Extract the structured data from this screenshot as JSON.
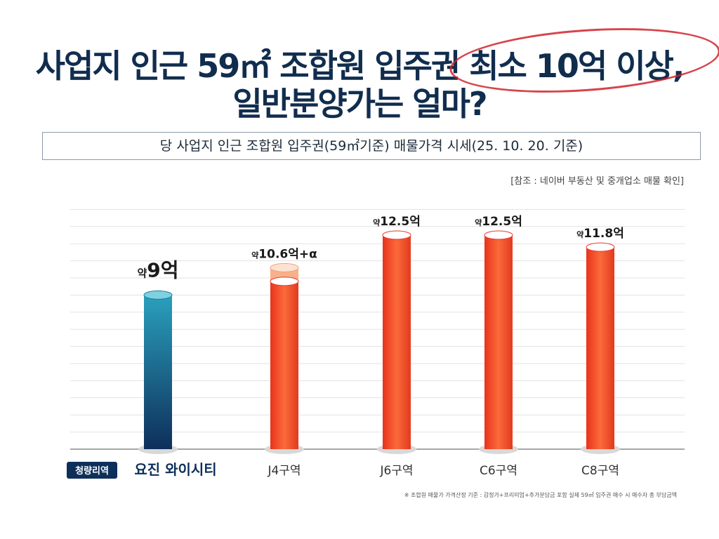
{
  "title": {
    "line1": "사업지 인근 59㎡ 조합원 입주권 최소 10억 이상,",
    "line2": "일반분양가는 얼마?"
  },
  "subtitle": "당 사업지 인근 조합원 입주권(59㎡기준) 매물가격 시세(25. 10. 20. 기준)",
  "source": "[참조 : 네이버 부동산 및 중개업소 매물 확인]",
  "footnote": "※ 조합원 매물가 가격산정 기준 : 감정가+프리미엄+추가분담금 포함 실제 59㎡ 입주권 매수 시 매수자 총 부담금액",
  "chart_data": {
    "type": "bar",
    "title": "당 사업지 인근 조합원 입주권(59㎡기준) 매물가격 시세",
    "ylabel": "억",
    "ylim": [
      0,
      13
    ],
    "grid": true,
    "categories": [
      "요진 와이시티",
      "J4구역",
      "J6구역",
      "C6구역",
      "C8구역"
    ],
    "category_tag": "청량리역",
    "values": [
      9,
      10.6,
      12.5,
      12.5,
      11.8
    ],
    "labels": [
      {
        "prefix": "약",
        "text": "9억"
      },
      {
        "prefix": "약",
        "text": "10.6억+α"
      },
      {
        "prefix": "약",
        "text": "12.5억"
      },
      {
        "prefix": "약",
        "text": "12.5억"
      },
      {
        "prefix": "약",
        "text": "11.8억"
      }
    ],
    "colors": {
      "highlight": "#1a7fa0",
      "others": "#f04a2a",
      "plus_alpha": "#f7b08a"
    }
  }
}
